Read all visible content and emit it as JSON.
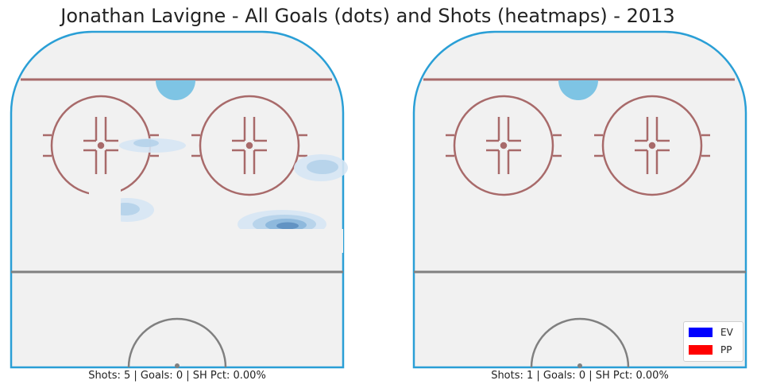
{
  "title": "Jonathan Lavigne - All Goals (dots) and Shots (heatmaps) - 2013",
  "colors": {
    "ice": "#f1f1f1",
    "boards": "#2a9fd6",
    "goal_line": "#a86a6a",
    "faceoff": "#a86a6a",
    "crease": "#7ec4e4",
    "center_line": "#808080",
    "ev": "#0000ff",
    "pp": "#ff0000",
    "heat_levels": [
      "#d6e6f4",
      "#b4d2ea",
      "#8ab6dc",
      "#5d8fc0"
    ]
  },
  "panels": [
    {
      "caption": "Shots: 5 | Goals: 0 | SH Pct: 0.00%",
      "shots": 5,
      "goals": 0,
      "sh_pct": "0.00%"
    },
    {
      "caption": "Shots: 1 | Goals: 0 | SH Pct: 0.00%",
      "shots": 1,
      "goals": 0,
      "sh_pct": "0.00%"
    }
  ],
  "legend": [
    {
      "label": "EV",
      "color": "#0000ff"
    },
    {
      "label": "PP",
      "color": "#ff0000"
    }
  ],
  "chart_data": {
    "type": "heatmap",
    "title": "Jonathan Lavigne - All Goals (dots) and Shots (heatmaps) - 2013",
    "panels": [
      {
        "shots": 5,
        "goals": 0,
        "sh_pct": "0.00%",
        "goal_points": []
      },
      {
        "shots": 1,
        "goals": 0,
        "sh_pct": "0.00%",
        "goal_points": []
      }
    ],
    "legend": [
      "EV",
      "PP"
    ],
    "legend_position": "lower-right",
    "grid": false
  }
}
